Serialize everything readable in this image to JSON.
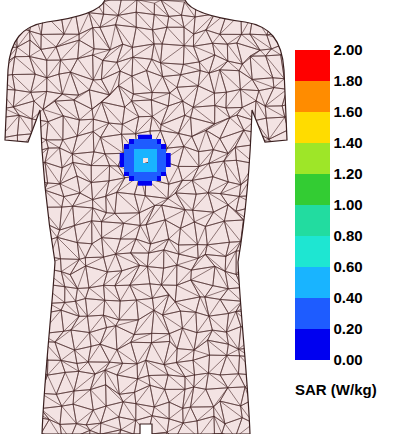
{
  "chart_data": {
    "type": "heatmap",
    "tick_labels": false,
    "colorbar_title": "SAR (W/kg)",
    "colorbar_range": [
      0,
      2
    ],
    "colorbar_ticks": [
      {
        "value": 0,
        "label": "0.00"
      },
      {
        "value": 0.2,
        "label": "0.20"
      },
      {
        "value": 0.4,
        "label": "0.40"
      },
      {
        "value": 0.6,
        "label": "0.60"
      },
      {
        "value": 0.8,
        "label": "0.80"
      },
      {
        "value": 1,
        "label": "1.00"
      },
      {
        "value": 1.2,
        "label": "1.20"
      },
      {
        "value": 1.4,
        "label": "1.40"
      },
      {
        "value": 1.6,
        "label": "1.60"
      },
      {
        "value": 1.8,
        "label": "1.80"
      },
      {
        "value": 2,
        "label": "2.00"
      }
    ],
    "cells": [
      [
        null,
        null,
        null,
        null,
        0.15,
        0.15,
        0.15,
        null,
        null,
        null,
        null
      ],
      [
        null,
        null,
        0.15,
        0.2,
        0.25,
        0.25,
        0.25,
        0.2,
        0.15,
        null,
        null
      ],
      [
        null,
        0.15,
        0.25,
        0.3,
        0.35,
        0.35,
        0.35,
        0.3,
        0.25,
        0.15,
        null
      ],
      [
        null,
        0.2,
        0.3,
        0.45,
        0.5,
        0.5,
        0.5,
        0.45,
        0.3,
        0.2,
        null
      ],
      [
        0.15,
        0.25,
        0.35,
        0.5,
        0.45,
        0.45,
        0.45,
        0.5,
        0.35,
        0.25,
        0.15
      ],
      [
        0.15,
        0.25,
        0.35,
        0.5,
        0.45,
        null,
        0.45,
        0.5,
        0.35,
        0.25,
        0.15
      ],
      [
        0.15,
        0.25,
        0.35,
        0.5,
        0.45,
        0.45,
        0.45,
        0.5,
        0.35,
        0.25,
        0.15
      ],
      [
        null,
        0.2,
        0.3,
        0.45,
        0.5,
        0.5,
        0.5,
        0.45,
        0.3,
        0.2,
        null
      ],
      [
        null,
        0.15,
        0.25,
        0.3,
        0.35,
        0.35,
        0.35,
        0.3,
        0.25,
        0.15,
        null
      ],
      [
        null,
        null,
        0.15,
        0.2,
        0.25,
        0.25,
        0.25,
        0.2,
        0.15,
        null,
        null
      ],
      [
        null,
        null,
        null,
        null,
        0.15,
        0.15,
        0.15,
        null,
        null,
        null,
        null
      ]
    ]
  }
}
